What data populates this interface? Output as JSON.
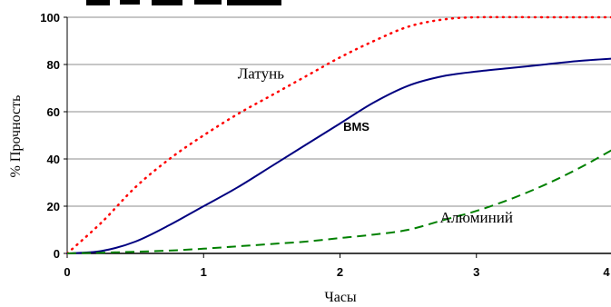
{
  "chart_data": {
    "type": "line",
    "title": "",
    "xlabel": "Часы",
    "ylabel": "% Прочность",
    "xlim": [
      0,
      4
    ],
    "ylim": [
      0,
      100
    ],
    "xticks": [
      "0",
      "1",
      "2",
      "3",
      "4"
    ],
    "yticks": [
      "0",
      "20",
      "40",
      "60",
      "80",
      "100"
    ],
    "grid": "horizontal",
    "series": [
      {
        "name": "Латунь",
        "style": "dotted",
        "color": "#ff0000",
        "x": [
          0,
          0.25,
          0.5,
          0.75,
          1.0,
          1.25,
          1.5,
          1.75,
          2.0,
          2.25,
          2.5,
          2.75,
          3.0,
          3.5,
          4.0
        ],
        "y": [
          0,
          13,
          28,
          40,
          50,
          59,
          67,
          75,
          83,
          90,
          96,
          99,
          100,
          100,
          100
        ]
      },
      {
        "name": "BMS",
        "style": "solid",
        "color": "#000080",
        "x": [
          0,
          0.25,
          0.5,
          0.75,
          1.0,
          1.25,
          1.5,
          1.75,
          2.0,
          2.25,
          2.5,
          2.75,
          3.0,
          3.25,
          3.5,
          3.75,
          4.0
        ],
        "y": [
          0,
          1,
          5,
          12,
          20,
          28,
          37,
          46,
          55,
          64,
          71,
          75,
          77,
          78.5,
          80,
          81.5,
          82.5
        ]
      },
      {
        "name": "Алюминий",
        "style": "dashed",
        "color": "#008000",
        "x": [
          0,
          0.25,
          0.5,
          0.75,
          1.0,
          1.25,
          1.5,
          1.75,
          2.0,
          2.25,
          2.5,
          2.75,
          3.0,
          3.25,
          3.5,
          3.75,
          4.0
        ],
        "y": [
          0,
          0.3,
          0.7,
          1.2,
          2,
          3,
          4,
          5,
          6.5,
          8,
          10,
          14,
          18,
          23,
          29,
          36,
          44
        ]
      }
    ],
    "annotations": [
      {
        "text": "Латунь",
        "series": "Латунь",
        "x": 1.42,
        "y": 74
      },
      {
        "text": "BMS",
        "series": "BMS",
        "x": 2.12,
        "y": 52
      },
      {
        "text": "Алюминий",
        "series": "Алюминий",
        "x": 3.0,
        "y": 13
      }
    ]
  }
}
